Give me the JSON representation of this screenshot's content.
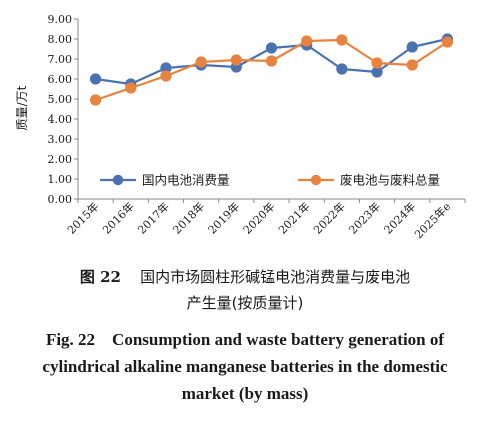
{
  "chart_data": {
    "type": "line",
    "categories": [
      "2015年",
      "2016年",
      "2017年",
      "2018年",
      "2019年",
      "2020年",
      "2021年",
      "2022年",
      "2023年",
      "2024年",
      "2025年e"
    ],
    "ylabel": "质量/万t",
    "ylim": [
      0,
      9
    ],
    "yticks": [
      "0.00",
      "1.00",
      "2.00",
      "3.00",
      "4.00",
      "5.00",
      "6.00",
      "7.00",
      "8.00",
      "9.00"
    ],
    "grid": false,
    "legend": "bottom-inside",
    "series": [
      {
        "name": "国内电池消费量",
        "color": "#4a72b0",
        "values": [
          6.0,
          5.75,
          6.55,
          6.7,
          6.6,
          7.55,
          7.7,
          6.5,
          6.35,
          7.6,
          8.0
        ]
      },
      {
        "name": "废电池与废料总量",
        "color": "#e8823f",
        "values": [
          4.95,
          5.55,
          6.15,
          6.85,
          6.95,
          6.9,
          7.9,
          7.95,
          6.8,
          6.7,
          7.85
        ]
      }
    ]
  },
  "caption": {
    "cn_label": "图 22",
    "cn_line1": "国内市场圆柱形碱锰电池消费量与废电池",
    "cn_line2": "产生量(按质量计)",
    "en_line1": "Fig. 22    Consumption and waste battery generation of",
    "en_line2": "cylindrical alkaline manganese batteries in the domestic",
    "en_line3": "market (by mass)"
  }
}
